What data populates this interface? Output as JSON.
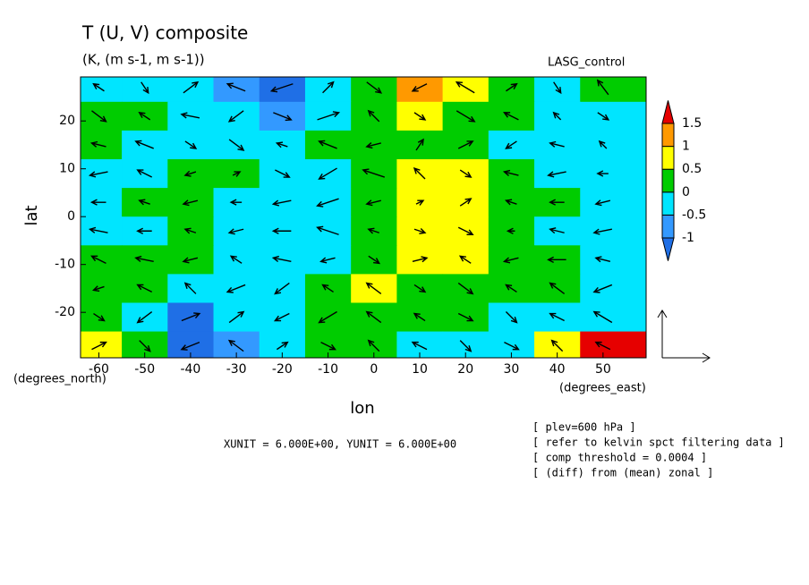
{
  "chart_data": {
    "type": "contour-vector",
    "title": "T (U, V) composite",
    "subtitle": "(K, (m s-1, m s-1))",
    "dataset": "LASG_control",
    "xlabel": "lon",
    "ylabel": "lat",
    "xunit_label": "(degrees_east)",
    "yunit_label": "(degrees_north)",
    "vector_units": "XUNIT = 6.000E+00, YUNIT = 6.000E+00",
    "notes": [
      "[ plev=600 hPa ]",
      "[ refer to kelvin spct filtering data ]",
      "[ comp threshold = 0.0004 ]",
      "[ (diff) from (mean) zonal ]"
    ],
    "xlim": [
      -64,
      59.4
    ],
    "ylim": [
      -29.5,
      29.2
    ],
    "xticks": [
      -60,
      -50,
      -40,
      -30,
      -20,
      -10,
      0,
      10,
      20,
      30,
      40,
      50
    ],
    "yticks": [
      -20,
      -10,
      0,
      10,
      20
    ],
    "levels": [
      -1,
      -0.5,
      0,
      0.5,
      1,
      1.5
    ],
    "level_colors": [
      "#1f6fe6",
      "#3399ff",
      "#00e5ff",
      "#00cc00",
      "#ffff00",
      "#ff9900",
      "#e60000"
    ],
    "lon": [
      -60,
      -50,
      -40,
      -30,
      -20,
      -10,
      0,
      10,
      20,
      30,
      40,
      50
    ],
    "lat": [
      27,
      21,
      15,
      9,
      3,
      -3,
      -9,
      -15,
      -21,
      -27
    ],
    "field": [
      [
        -0.2,
        -0.3,
        -0.4,
        -0.7,
        -1.1,
        -0.3,
        0.2,
        1.2,
        0.7,
        0.3,
        -0.2,
        0.2
      ],
      [
        0.2,
        0.2,
        -0.3,
        -0.3,
        -0.6,
        -0.3,
        0.2,
        0.7,
        0.3,
        0.2,
        -0.3,
        -0.3
      ],
      [
        0.2,
        -0.2,
        -0.3,
        -0.3,
        -0.3,
        0.2,
        0.2,
        0.4,
        0.2,
        -0.2,
        -0.3,
        -0.3
      ],
      [
        -0.3,
        -0.3,
        0.2,
        0.2,
        -0.3,
        -0.3,
        0.2,
        0.7,
        0.6,
        0.2,
        -0.2,
        -0.3
      ],
      [
        -0.3,
        0.2,
        0.2,
        -0.3,
        -0.3,
        -0.3,
        0.2,
        0.7,
        0.6,
        0.2,
        0.2,
        -0.3
      ],
      [
        -0.3,
        -0.3,
        0.2,
        -0.3,
        -0.3,
        -0.3,
        0.2,
        0.7,
        0.6,
        0.2,
        -0.3,
        -0.3
      ],
      [
        0.2,
        0.2,
        0.2,
        -0.3,
        -0.3,
        -0.3,
        0.2,
        0.7,
        0.6,
        0.2,
        0.2,
        -0.3
      ],
      [
        0.2,
        0.2,
        -0.3,
        -0.3,
        -0.3,
        0.2,
        0.6,
        0.3,
        0.2,
        0.2,
        0.2,
        -0.3
      ],
      [
        0.2,
        -0.3,
        -1.1,
        -0.3,
        -0.3,
        0.2,
        0.2,
        0.2,
        0.2,
        -0.3,
        -0.3,
        -0.3
      ],
      [
        0.7,
        0.2,
        -1.1,
        -0.7,
        -0.3,
        0.2,
        0.2,
        -0.3,
        -0.3,
        -0.3,
        0.7,
        1.6
      ]
    ],
    "u": [
      [
        -3,
        2,
        4,
        -5,
        -6,
        3,
        4,
        -4,
        -5,
        3,
        2,
        -3
      ],
      [
        4,
        -3,
        -5,
        -4,
        5,
        6,
        -3,
        3,
        5,
        -4,
        -2,
        3
      ],
      [
        -4,
        -5,
        3,
        4,
        -3,
        -5,
        -4,
        2,
        4,
        -3,
        -4,
        -2
      ],
      [
        -5,
        -4,
        -3,
        2,
        4,
        -5,
        -6,
        -3,
        3,
        -4,
        -5,
        -3
      ],
      [
        -4,
        -3,
        -4,
        -3,
        -5,
        -6,
        -4,
        2,
        3,
        -3,
        -4,
        -4
      ],
      [
        -5,
        -4,
        -3,
        -4,
        -5,
        -6,
        -3,
        3,
        4,
        -2,
        -4,
        -5
      ],
      [
        -4,
        -5,
        -4,
        -3,
        -5,
        -4,
        3,
        4,
        -3,
        -4,
        -5,
        -4
      ],
      [
        -3,
        -4,
        -3,
        -5,
        -4,
        -3,
        -4,
        3,
        4,
        -3,
        -4,
        -5
      ],
      [
        3,
        -4,
        5,
        4,
        -4,
        -5,
        -4,
        -3,
        4,
        3,
        -4,
        -5
      ],
      [
        4,
        3,
        -5,
        -4,
        3,
        4,
        -3,
        -4,
        3,
        4,
        -3,
        -4
      ]
    ],
    "v": [
      [
        2,
        -3,
        3,
        2,
        -2,
        3,
        -3,
        -2,
        3,
        2,
        -3,
        4
      ],
      [
        -3,
        2,
        1,
        -3,
        -2,
        2,
        3,
        -2,
        -3,
        2,
        2,
        -2
      ],
      [
        1,
        2,
        -2,
        -3,
        1,
        2,
        -1,
        3,
        2,
        -2,
        1,
        2
      ],
      [
        -1,
        2,
        -1,
        1,
        -2,
        -3,
        2,
        3,
        -2,
        1,
        -1,
        0
      ],
      [
        0,
        1,
        -1,
        0,
        -1,
        -2,
        -1,
        1,
        2,
        1,
        0,
        -1
      ],
      [
        1,
        0,
        1,
        -1,
        0,
        2,
        1,
        -1,
        -2,
        0,
        1,
        -1
      ],
      [
        2,
        1,
        -1,
        2,
        1,
        -1,
        -2,
        1,
        2,
        -1,
        0,
        1
      ],
      [
        -1,
        2,
        3,
        -2,
        -3,
        2,
        3,
        -2,
        -3,
        2,
        3,
        -2
      ],
      [
        -2,
        -3,
        2,
        3,
        -2,
        -3,
        3,
        2,
        -2,
        -3,
        2,
        3
      ],
      [
        2,
        -3,
        -2,
        3,
        2,
        -2,
        3,
        2,
        -3,
        -2,
        3,
        2
      ]
    ]
  }
}
